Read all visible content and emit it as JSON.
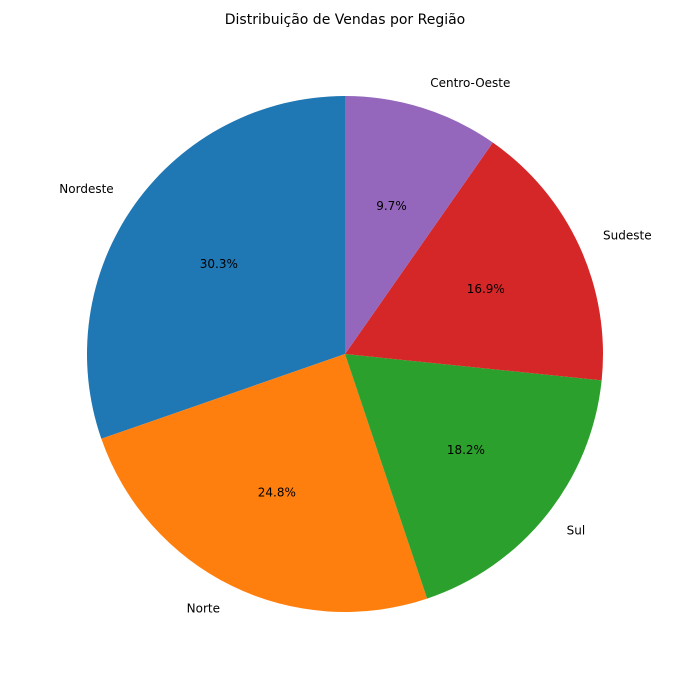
{
  "chart_data": {
    "type": "pie",
    "title": "Distribuição de Vendas por Região",
    "start_angle_deg": 90,
    "direction": "counterclockwise",
    "slices": [
      {
        "label": "Nordeste",
        "percent": 30.3,
        "percent_label": "30.3%",
        "color": "#1f77b4"
      },
      {
        "label": "Norte",
        "percent": 24.8,
        "percent_label": "24.8%",
        "color": "#ff7f0e"
      },
      {
        "label": "Sul",
        "percent": 18.2,
        "percent_label": "18.2%",
        "color": "#2ca02c"
      },
      {
        "label": "Sudeste",
        "percent": 16.9,
        "percent_label": "16.9%",
        "color": "#d62728"
      },
      {
        "label": "Centro-Oeste",
        "percent": 9.7,
        "percent_label": "9.7%",
        "color": "#9467bd"
      }
    ]
  }
}
